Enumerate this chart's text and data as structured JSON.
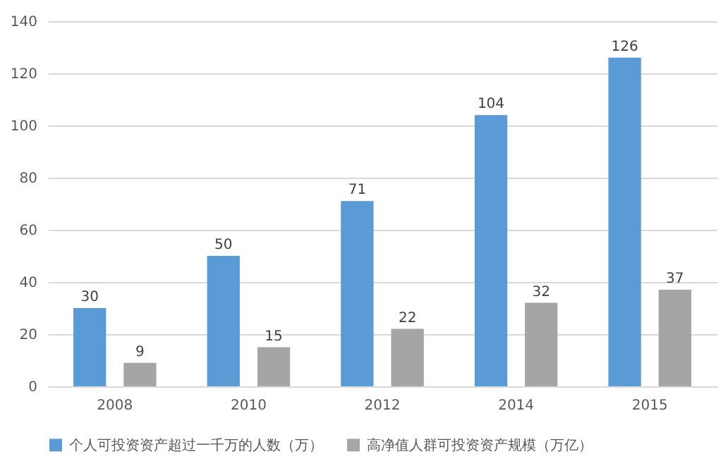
{
  "chart_data": {
    "type": "bar",
    "categories": [
      "2008",
      "2010",
      "2012",
      "2014",
      "2015"
    ],
    "series": [
      {
        "name": "个人可投资资产超过一千万的人数（万）",
        "color": "#5b9bd5",
        "values": [
          30,
          50,
          71,
          104,
          126
        ]
      },
      {
        "name": "高净值人群可投资资产规模（万亿）",
        "color": "#a5a5a5",
        "values": [
          9,
          15,
          22,
          32,
          37
        ]
      }
    ],
    "ylim": [
      0,
      140
    ],
    "yticks": [
      0,
      20,
      40,
      60,
      80,
      100,
      120,
      140
    ],
    "grid": "y",
    "legend": "bottom",
    "data_labels": true
  }
}
